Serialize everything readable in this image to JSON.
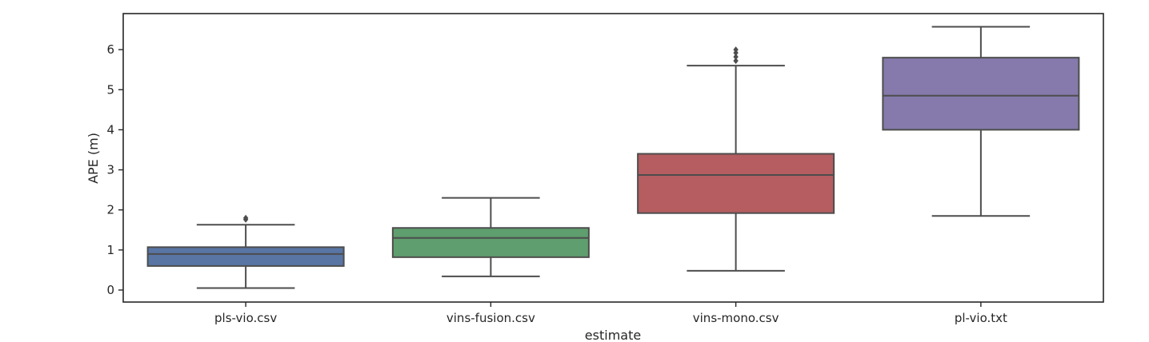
{
  "chart_data": {
    "type": "box",
    "title": "",
    "xlabel": "estimate",
    "ylabel": "APE (m)",
    "ylim": [
      -0.3,
      6.9
    ],
    "yticks": [
      0,
      1,
      2,
      3,
      4,
      5,
      6
    ],
    "grid": false,
    "categories": [
      "pls-vio.csv",
      "vins-fusion.csv",
      "vins-mono.csv",
      "pl-vio.txt"
    ],
    "colors": [
      "#5875a4",
      "#5f9e6e",
      "#b55d60",
      "#857aab"
    ],
    "boxes": [
      {
        "category": "pls-vio.csv",
        "whisker_low": 0.05,
        "q1": 0.6,
        "median": 0.9,
        "q3": 1.07,
        "whisker_high": 1.63,
        "outliers": [
          1.76,
          1.8
        ]
      },
      {
        "category": "vins-fusion.csv",
        "whisker_low": 0.34,
        "q1": 0.82,
        "median": 1.3,
        "q3": 1.55,
        "whisker_high": 2.3,
        "outliers": []
      },
      {
        "category": "vins-mono.csv",
        "whisker_low": 0.48,
        "q1": 1.92,
        "median": 2.87,
        "q3": 3.4,
        "whisker_high": 5.6,
        "outliers": [
          5.72,
          5.82,
          5.92,
          6.0
        ]
      },
      {
        "category": "pl-vio.txt",
        "whisker_low": 1.85,
        "q1": 4.0,
        "median": 4.85,
        "q3": 5.8,
        "whisker_high": 6.57,
        "outliers": []
      }
    ]
  }
}
